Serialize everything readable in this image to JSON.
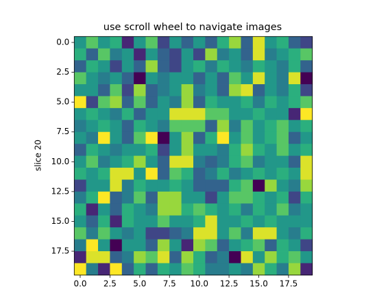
{
  "chart_data": {
    "type": "heatmap",
    "title": "use scroll wheel to navigate images",
    "ylabel": "slice 20",
    "colormap": "viridis",
    "xlim": [
      -0.5,
      19.5
    ],
    "ylim": [
      19.5,
      -0.5
    ],
    "xticks": [
      {
        "value": 0,
        "label": "0.0"
      },
      2.5,
      {
        "value": 5,
        "label": "5.0"
      },
      7.5,
      {
        "value": 10,
        "label": "10.0"
      },
      12.5,
      {
        "value": 15,
        "label": "15.0"
      },
      17.5
    ],
    "yticks": [
      {
        "value": 0,
        "label": "0.0"
      },
      2.5,
      {
        "value": 5,
        "label": "5.0"
      },
      7.5,
      {
        "value": 10,
        "label": "10.0"
      },
      12.5,
      {
        "value": 15,
        "label": "15.0"
      },
      17.5
    ],
    "z": [
      [
        0.5,
        0.7,
        0.5,
        0.6,
        0.1,
        0.5,
        0.7,
        0.2,
        0.5,
        0.3,
        0.5,
        0.3,
        0.6,
        0.8,
        0.3,
        0.9,
        0.5,
        0.6,
        0.3,
        0.2
      ],
      [
        0.6,
        0.3,
        0.7,
        0.4,
        0.5,
        0.1,
        0.5,
        0.3,
        0.2,
        0.5,
        0.2,
        0.8,
        0.4,
        0.5,
        0.3,
        0.9,
        0.4,
        0.5,
        0.6,
        0.7
      ],
      [
        0.3,
        0.6,
        0.5,
        0.2,
        0.5,
        0.3,
        0.8,
        0.3,
        0.2,
        0.5,
        0.6,
        0.4,
        0.6,
        0.5,
        0.4,
        0.6,
        0.5,
        0.4,
        0.6,
        0.3
      ],
      [
        0.7,
        0.5,
        0.4,
        0.5,
        0.3,
        0.0,
        0.5,
        0.4,
        0.5,
        0.5,
        0.3,
        0.5,
        0.3,
        0.7,
        0.5,
        0.9,
        0.5,
        0.4,
        0.9,
        0.0
      ],
      [
        0.5,
        0.5,
        0.3,
        0.7,
        0.2,
        0.8,
        0.3,
        0.4,
        0.5,
        0.8,
        0.4,
        0.5,
        0.3,
        0.8,
        0.9,
        0.3,
        0.5,
        0.4,
        0.6,
        0.2
      ],
      [
        0.95,
        0.2,
        0.7,
        0.8,
        0.3,
        0.7,
        0.3,
        0.5,
        0.4,
        0.8,
        0.3,
        0.6,
        0.5,
        0.5,
        0.6,
        0.4,
        0.6,
        0.5,
        0.6,
        0.7
      ],
      [
        0.5,
        0.6,
        0.5,
        0.4,
        0.6,
        0.3,
        0.5,
        0.5,
        0.9,
        0.9,
        0.9,
        0.7,
        0.7,
        0.5,
        0.5,
        0.6,
        0.5,
        0.5,
        0.1,
        0.95
      ],
      [
        0.4,
        0.5,
        0.6,
        0.5,
        0.3,
        0.6,
        0.5,
        0.4,
        0.7,
        0.7,
        0.7,
        0.3,
        0.8,
        0.4,
        0.7,
        0.5,
        0.6,
        0.7,
        0.5,
        0.6
      ],
      [
        0.5,
        0.4,
        0.95,
        0.5,
        0.3,
        0.7,
        0.95,
        0.0,
        0.5,
        0.8,
        0.3,
        0.6,
        0.95,
        0.5,
        0.7,
        0.5,
        0.6,
        0.7,
        0.3,
        0.5
      ],
      [
        0.3,
        0.6,
        0.5,
        0.4,
        0.5,
        0.5,
        0.6,
        0.2,
        0.5,
        0.8,
        0.5,
        0.5,
        0.4,
        0.6,
        0.8,
        0.6,
        0.5,
        0.7,
        0.5,
        0.6
      ],
      [
        0.5,
        0.7,
        0.4,
        0.5,
        0.6,
        0.8,
        0.5,
        0.3,
        0.9,
        0.9,
        0.4,
        0.3,
        0.4,
        0.6,
        0.7,
        0.4,
        0.5,
        0.5,
        0.3,
        0.9
      ],
      [
        0.6,
        0.5,
        0.6,
        0.9,
        0.9,
        0.5,
        0.95,
        0.3,
        0.7,
        0.6,
        0.3,
        0.4,
        0.6,
        0.4,
        0.5,
        0.6,
        0.5,
        0.6,
        0.5,
        0.9
      ],
      [
        0.2,
        0.5,
        0.5,
        0.9,
        0.4,
        0.6,
        0.5,
        0.5,
        0.6,
        0.5,
        0.3,
        0.3,
        0.3,
        0.6,
        0.7,
        0.0,
        0.8,
        0.5,
        0.4,
        0.8
      ],
      [
        0.4,
        0.6,
        0.95,
        0.3,
        0.4,
        0.7,
        0.3,
        0.8,
        0.8,
        0.5,
        0.5,
        0.2,
        0.5,
        0.7,
        0.7,
        0.6,
        0.5,
        0.6,
        0.2,
        0.6
      ],
      [
        0.6,
        0.1,
        0.5,
        0.3,
        0.6,
        0.5,
        0.4,
        0.8,
        0.8,
        0.6,
        0.7,
        0.6,
        0.5,
        0.6,
        0.4,
        0.6,
        0.5,
        0.7,
        0.4,
        0.5
      ],
      [
        0.5,
        0.3,
        0.6,
        0.1,
        0.6,
        0.5,
        0.5,
        0.7,
        0.5,
        0.5,
        0.6,
        0.9,
        0.5,
        0.5,
        0.6,
        0.5,
        0.6,
        0.5,
        0.5,
        0.5
      ],
      [
        0.7,
        0.4,
        0.7,
        0.5,
        0.4,
        0.5,
        0.2,
        0.2,
        0.3,
        0.4,
        0.9,
        0.9,
        0.5,
        0.7,
        0.4,
        0.9,
        0.9,
        0.5,
        0.4,
        0.6
      ],
      [
        0.4,
        0.95,
        0.5,
        0.0,
        0.5,
        0.5,
        0.3,
        0.8,
        0.5,
        0.1,
        0.8,
        0.7,
        0.3,
        0.5,
        0.6,
        0.7,
        0.3,
        0.6,
        0.5,
        0.2
      ],
      [
        0.1,
        0.9,
        0.9,
        0.3,
        0.4,
        0.8,
        0.7,
        0.9,
        0.3,
        0.8,
        0.6,
        0.3,
        0.4,
        0.0,
        0.9,
        0.5,
        0.8,
        0.6,
        0.7,
        0.5
      ],
      [
        0.95,
        0.4,
        0.1,
        0.95,
        0.3,
        0.6,
        0.3,
        0.6,
        0.5,
        0.7,
        0.6,
        0.4,
        0.4,
        0.5,
        0.4,
        0.8,
        0.6,
        0.4,
        0.8,
        0.1
      ]
    ]
  }
}
